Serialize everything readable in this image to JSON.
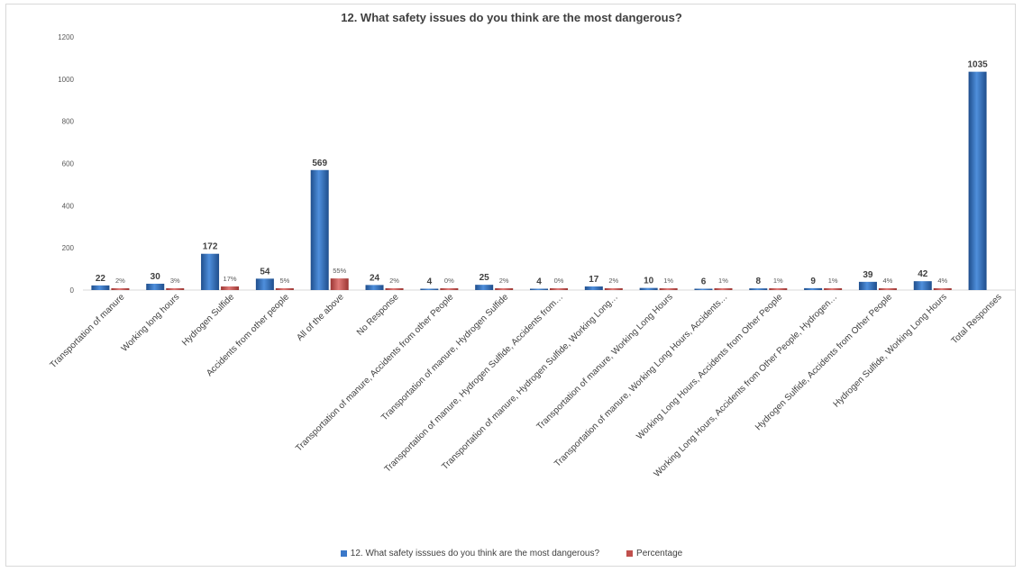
{
  "chart_data": {
    "type": "bar",
    "title": "12. What safety issues do you think are the most dangerous?",
    "xlabel": "",
    "ylabel": "",
    "ylim": [
      0,
      1200
    ],
    "yticks": [
      0,
      200,
      400,
      600,
      800,
      1000,
      1200
    ],
    "grid": false,
    "legend_position": "bottom",
    "categories": [
      "Transportation of manure",
      "Working long hours",
      "Hydrogen Sulfide",
      "Accidents from other people",
      "All of the above",
      "No Response",
      "Transportation of manure, Accidents from other People",
      "Transportation of manure, Hydrogen Sulfide",
      "Transportation of manure, Hydrogen Sulfide, Accidents from…",
      "Transportation of manure, Hydrogen Sulfide, Working Long…",
      "Transportation of manure, Working Long Hours",
      "Transportation of manure, Working Long Hours, Accidents…",
      "Working Long Hours, Accidents from Other People",
      "Working Long Hours, Accidents from Other People, Hydrogen…",
      "Hydrogen Sulfide, Accidents from Other People",
      "Hydrogen Sulfide, Working Long Hours",
      "Total Responses"
    ],
    "series": [
      {
        "name": "12. What safety isssues do you think are the most dangerous?",
        "color": "#3a78c9",
        "values": [
          22,
          30,
          172,
          54,
          569,
          24,
          4,
          25,
          4,
          17,
          10,
          6,
          8,
          9,
          39,
          42,
          1035
        ],
        "labels": [
          "22",
          "30",
          "172",
          "54",
          "569",
          "24",
          "4",
          "25",
          "4",
          "17",
          "10",
          "6",
          "8",
          "9",
          "39",
          "42",
          "1035"
        ]
      },
      {
        "name": "Percentage",
        "color": "#c0504d",
        "values": [
          2,
          3,
          17,
          5,
          55,
          2,
          0,
          2,
          0,
          2,
          1,
          1,
          1,
          1,
          4,
          4,
          null
        ],
        "labels": [
          "2%",
          "3%",
          "17%",
          "5%",
          "55%",
          "2%",
          "0%",
          "2%",
          "0%",
          "2%",
          "1%",
          "1%",
          "1%",
          "1%",
          "4%",
          "4%",
          null
        ]
      }
    ]
  }
}
